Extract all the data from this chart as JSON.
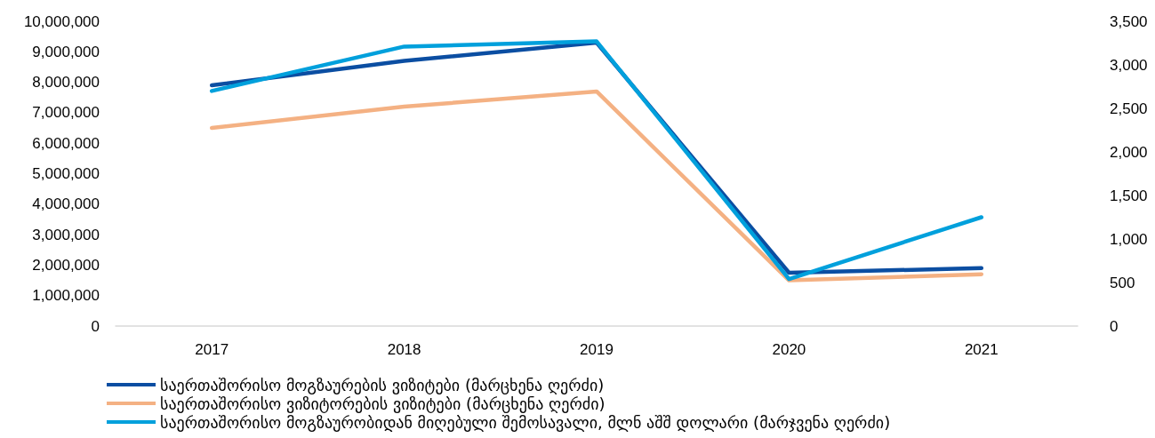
{
  "chart_data": {
    "type": "line",
    "categories": [
      "2017",
      "2018",
      "2019",
      "2020",
      "2021"
    ],
    "series": [
      {
        "name": "საერთაშორისო მოგზაურების ვიზიტები (მარცხენა ღერძი)",
        "color": "#0b4ea2",
        "values": [
          7900000,
          8700000,
          9300000,
          1750000,
          1900000
        ]
      },
      {
        "name": "საერთაშორისო ვიზიტორების ვიზიტები (მარცხენა ღერძი)",
        "color": "#f4b183",
        "values": [
          6500000,
          7200000,
          7700000,
          1500000,
          1700000
        ]
      },
      {
        "name": "საერთაშორისო მოგზაურობიდან მიღებული შემოსავალი, მლნ აშშ დოლარი (მარჯვენა ღერძი)",
        "color": "#00a0dc",
        "values": [
          2700,
          3210,
          3270,
          540,
          1250
        ],
        "axis": "y2"
      }
    ],
    "ylim": [
      0,
      10000000
    ],
    "yticks": [
      {
        "value": 0,
        "label": "0"
      },
      {
        "value": 1000000,
        "label": "1,000,000"
      },
      {
        "value": 2000000,
        "label": "2,000,000"
      },
      {
        "value": 3000000,
        "label": "3,000,000"
      },
      {
        "value": 4000000,
        "label": "4,000,000"
      },
      {
        "value": 5000000,
        "label": "5,000,000"
      },
      {
        "value": 6000000,
        "label": "6,000,000"
      },
      {
        "value": 7000000,
        "label": "7,000,000"
      },
      {
        "value": 8000000,
        "label": "8,000,000"
      },
      {
        "value": 9000000,
        "label": "9,000,000"
      },
      {
        "value": 10000000,
        "label": "10,000,000"
      }
    ],
    "y2lim": [
      0,
      3500
    ],
    "y2ticks": [
      0,
      500,
      {
        "value": 1000,
        "label": "1,000"
      },
      {
        "value": 1500,
        "label": "1,500"
      },
      {
        "value": 2000,
        "label": "2,000"
      },
      {
        "value": 2500,
        "label": "2,500"
      },
      {
        "value": 3000,
        "label": "3,000"
      },
      {
        "value": 3500,
        "label": "3,500"
      }
    ],
    "grid": false,
    "legend": "bottom",
    "marker": "none",
    "line_style": "solid"
  }
}
